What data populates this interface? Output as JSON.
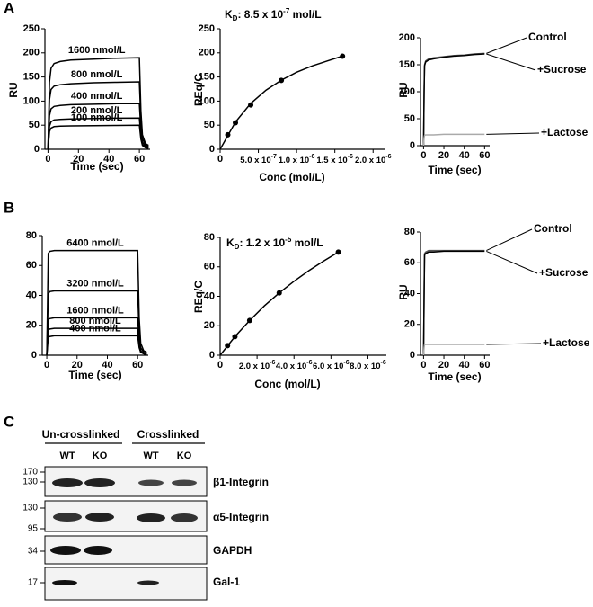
{
  "panel_labels": [
    "A",
    "B",
    "C"
  ],
  "chart_data": [
    {
      "type": "line",
      "legend": "inline",
      "xlabel": "Time (sec)",
      "ylabel": "RU",
      "xlim": [
        -2,
        67
      ],
      "xticks": [
        0,
        20,
        40,
        60
      ],
      "ylim": [
        0,
        250
      ],
      "yticks": [
        0,
        50,
        100,
        150,
        200,
        250
      ],
      "x": [
        0,
        1,
        2,
        4,
        8,
        15,
        30,
        45,
        60,
        61,
        62,
        64,
        66
      ],
      "series": [
        {
          "name": "1600 nmol/L",
          "color": "#000000",
          "values": [
            0,
            140,
            168,
            178,
            182,
            185,
            187,
            189,
            190,
            80,
            30,
            12,
            8
          ]
        },
        {
          "name": "800 nmol/L",
          "color": "#000000",
          "values": [
            0,
            103,
            124,
            131,
            134,
            136,
            138,
            139,
            140,
            59,
            22,
            9,
            6
          ]
        },
        {
          "name": "400 nmol/L",
          "color": "#000000",
          "values": [
            0,
            70,
            84,
            89,
            91,
            92.5,
            93.5,
            94.5,
            95,
            40,
            15,
            6,
            4
          ]
        },
        {
          "name": "200 nmol/L",
          "color": "#000000",
          "values": [
            0,
            48,
            57,
            61,
            62,
            63,
            64,
            64.5,
            65,
            27,
            10,
            4,
            3
          ]
        },
        {
          "name": "100 nmol/L",
          "color": "#000000",
          "values": [
            0,
            37,
            44,
            47,
            48,
            48.5,
            49,
            49.5,
            50,
            21,
            8,
            3,
            2
          ]
        }
      ]
    },
    {
      "type": "scatter",
      "title": [
        "K",
        "D",
        ": 8.5 x 10",
        "-7",
        " mol/L"
      ],
      "xlabel": "Conc (mol/L)",
      "ylabel": "REq/C",
      "color": "#000000",
      "xlim": [
        0,
        2.15e-06
      ],
      "xticks": [
        0,
        {
          "value": 5e-07,
          "label": "5.0 x 10",
          "label_exp": "-7"
        },
        {
          "value": 1e-06,
          "label": "1.0 x 10",
          "label_exp": "-6"
        },
        {
          "value": 1.5e-06,
          "label": "1.5 x 10",
          "label_exp": "-6"
        },
        {
          "value": 2e-06,
          "label": "2.0 x 10",
          "label_exp": "-6"
        }
      ],
      "ylim": [
        0,
        250
      ],
      "yticks": [
        0,
        50,
        100,
        150,
        200,
        250
      ],
      "x": [
        1e-07,
        2e-07,
        4e-07,
        8e-07,
        1.6e-06
      ],
      "values": [
        30,
        55,
        92,
        143,
        193
      ],
      "fit_x": [
        0,
        2e-07,
        4e-07,
        6e-07,
        8e-07,
        1e-06,
        1.2e-06,
        1.4e-06,
        1.6e-06
      ],
      "fit_values": [
        0,
        56.4,
        95.2,
        122.8,
        143.5,
        159.8,
        172.7,
        183.3,
        193.3
      ]
    },
    {
      "type": "line",
      "legend": "right",
      "xlabel": "Time (sec)",
      "ylabel": "RU",
      "xlim": [
        -3,
        65
      ],
      "xticks": [
        0,
        20,
        40,
        60
      ],
      "ylim": [
        0,
        200
      ],
      "yticks": [
        0,
        50,
        100,
        150,
        200
      ],
      "x": [
        0,
        0.5,
        1,
        2,
        5,
        10,
        20,
        30,
        40,
        50,
        60
      ],
      "series": [
        {
          "name": "Control",
          "color": "#555555",
          "values": [
            0,
            100,
            150,
            157,
            161,
            163,
            165,
            167,
            168,
            170,
            171
          ]
        },
        {
          "name": "+Sucrose",
          "color": "#000000",
          "values": [
            0,
            98,
            148,
            155,
            159,
            161,
            164,
            166,
            167,
            169,
            170
          ]
        },
        {
          "name": "+Lactose",
          "color": "#aaaaaa",
          "values": [
            0,
            15,
            19,
            20,
            20,
            20,
            21,
            21,
            21,
            21,
            21
          ]
        }
      ]
    },
    {
      "type": "line",
      "legend": "inline",
      "xlabel": "Time (sec)",
      "ylabel": "",
      "xlim": [
        -3,
        67
      ],
      "xticks": [
        0,
        20,
        40,
        60
      ],
      "ylim": [
        0,
        80
      ],
      "yticks": [
        0,
        20,
        40,
        60,
        80
      ],
      "x": [
        0,
        1,
        2,
        5,
        15,
        30,
        45,
        60,
        61,
        62,
        64,
        66
      ],
      "series": [
        {
          "name": "6400 nmol/L",
          "color": "#000000",
          "values": [
            0,
            68,
            69.5,
            70,
            70,
            70,
            70,
            70,
            25,
            8,
            3,
            2
          ]
        },
        {
          "name": "3200 nmol/L",
          "color": "#000000",
          "values": [
            0,
            41,
            42.5,
            43,
            43,
            43,
            43,
            43,
            15,
            5,
            2,
            1
          ]
        },
        {
          "name": "1600 nmol/L",
          "color": "#000000",
          "values": [
            0,
            24,
            24.5,
            25,
            25,
            25,
            25,
            25,
            9,
            3,
            1,
            1
          ]
        },
        {
          "name": "800 nmol/L",
          "color": "#000000",
          "values": [
            0,
            17,
            17.5,
            18,
            18,
            18,
            18,
            18,
            6,
            2,
            1,
            0
          ]
        },
        {
          "name": "400 nmol/L",
          "color": "#000000",
          "values": [
            0,
            12,
            12.5,
            13,
            13,
            13,
            13,
            13,
            5,
            2,
            1,
            0
          ]
        }
      ]
    },
    {
      "type": "scatter",
      "title": [
        "K",
        "D",
        ": 1.2 x 10",
        "-5",
        " mol/L"
      ],
      "xlabel": "Conc (mol/L)",
      "ylabel": "REq/C",
      "color": "#000000",
      "xlim": [
        0,
        9e-06
      ],
      "xticks": [
        0,
        {
          "value": 2e-06,
          "label": "2.0 x 10",
          "label_exp": "-6"
        },
        {
          "value": 4e-06,
          "label": "4.0 x 10",
          "label_exp": "-6"
        },
        {
          "value": 6e-06,
          "label": "6.0 x 10",
          "label_exp": "-6"
        },
        {
          "value": 8e-06,
          "label": "8.0 x 10",
          "label_exp": "-6"
        }
      ],
      "ylim": [
        0,
        80
      ],
      "yticks": [
        0,
        20,
        40,
        60,
        80
      ],
      "x": [
        4e-07,
        8e-07,
        1.6e-06,
        3.2e-06,
        6.4e-06
      ],
      "values": [
        6.5,
        12.6,
        23.6,
        42.3,
        70
      ],
      "fit_x": [
        0,
        8e-07,
        1.6e-06,
        2.4e-06,
        3.2e-06,
        4e-06,
        4.8e-06,
        5.6e-06,
        6.4e-06
      ],
      "fit_values": [
        0,
        12.6,
        23.6,
        33.5,
        42.3,
        50.2,
        57.4,
        63.9,
        70
      ]
    },
    {
      "type": "line",
      "legend": "right",
      "xlabel": "Time (sec)",
      "ylabel": "RU",
      "xlim": [
        -3,
        65
      ],
      "xticks": [
        0,
        20,
        40,
        60
      ],
      "ylim": [
        0,
        80
      ],
      "yticks": [
        0,
        20,
        40,
        60,
        80
      ],
      "x": [
        0,
        0.5,
        1,
        2,
        5,
        10,
        20,
        30,
        40,
        50,
        60
      ],
      "series": [
        {
          "name": "Control",
          "color": "#555555",
          "values": [
            0,
            40,
            66,
            67,
            68,
            68,
            68,
            68,
            68,
            68,
            68
          ]
        },
        {
          "name": "+Sucrose",
          "color": "#000000",
          "values": [
            0,
            38,
            65,
            66,
            67,
            67,
            67.5,
            67.5,
            67.5,
            67.5,
            67.5
          ]
        },
        {
          "name": "+Lactose",
          "color": "#aaaaaa",
          "values": [
            0,
            5,
            7,
            7,
            7,
            7,
            7,
            7,
            7,
            7,
            7
          ]
        }
      ]
    }
  ],
  "blot": {
    "groups": [
      "Un-crosslinked",
      "Crosslinked"
    ],
    "lanes": [
      "WT",
      "KO",
      "WT",
      "KO"
    ],
    "rows": [
      {
        "markers": [
          170,
          130
        ],
        "label": "β1-Integrin"
      },
      {
        "markers": [
          130,
          95
        ],
        "label": "α5-Integrin"
      },
      {
        "markers": [
          34
        ],
        "label": "GAPDH"
      },
      {
        "markers": [
          17
        ],
        "label": "Gal-1"
      }
    ]
  }
}
